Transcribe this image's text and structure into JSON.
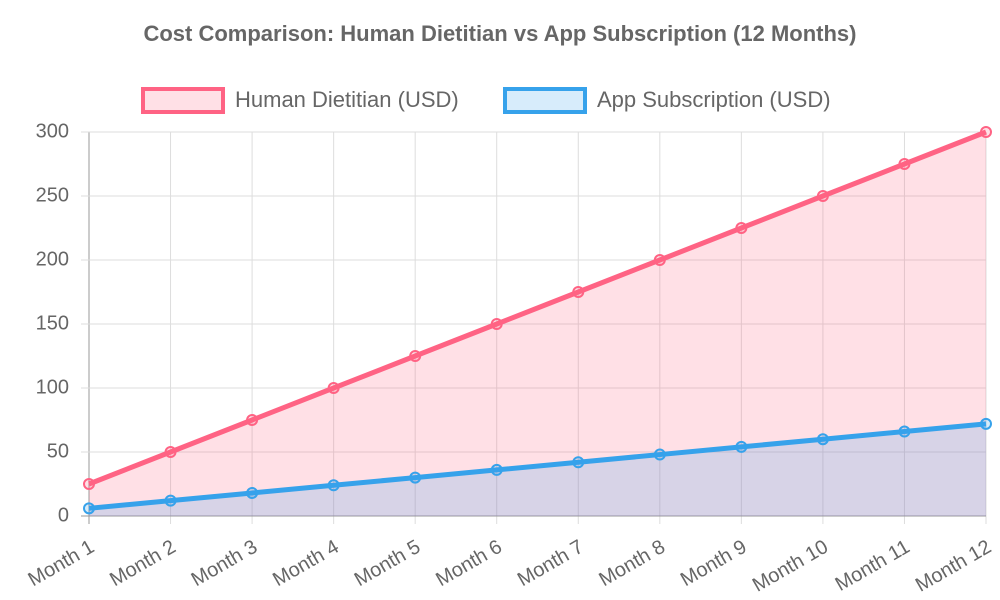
{
  "chart_data": {
    "type": "line",
    "title": "Cost Comparison: Human Dietitian vs App Subscription (12 Months)",
    "categories": [
      "Month 1",
      "Month 2",
      "Month 3",
      "Month 4",
      "Month 5",
      "Month 6",
      "Month 7",
      "Month 8",
      "Month 9",
      "Month 10",
      "Month 11",
      "Month 12"
    ],
    "series": [
      {
        "name": "Human Dietitian (USD)",
        "color": "#ff6384",
        "fill_color": "rgba(255,99,132,0.2)",
        "values": [
          25,
          50,
          75,
          100,
          125,
          150,
          175,
          200,
          225,
          250,
          275,
          300
        ]
      },
      {
        "name": "App Subscription (USD)",
        "color": "#36a2eb",
        "fill_color": "rgba(54,162,235,0.2)",
        "values": [
          6,
          12,
          18,
          24,
          30,
          36,
          42,
          48,
          54,
          60,
          66,
          72
        ]
      }
    ],
    "ylim": [
      0,
      300
    ],
    "yticks": [
      0,
      50,
      100,
      150,
      200,
      250,
      300
    ],
    "grid": true,
    "fill": true,
    "legend": "top"
  }
}
